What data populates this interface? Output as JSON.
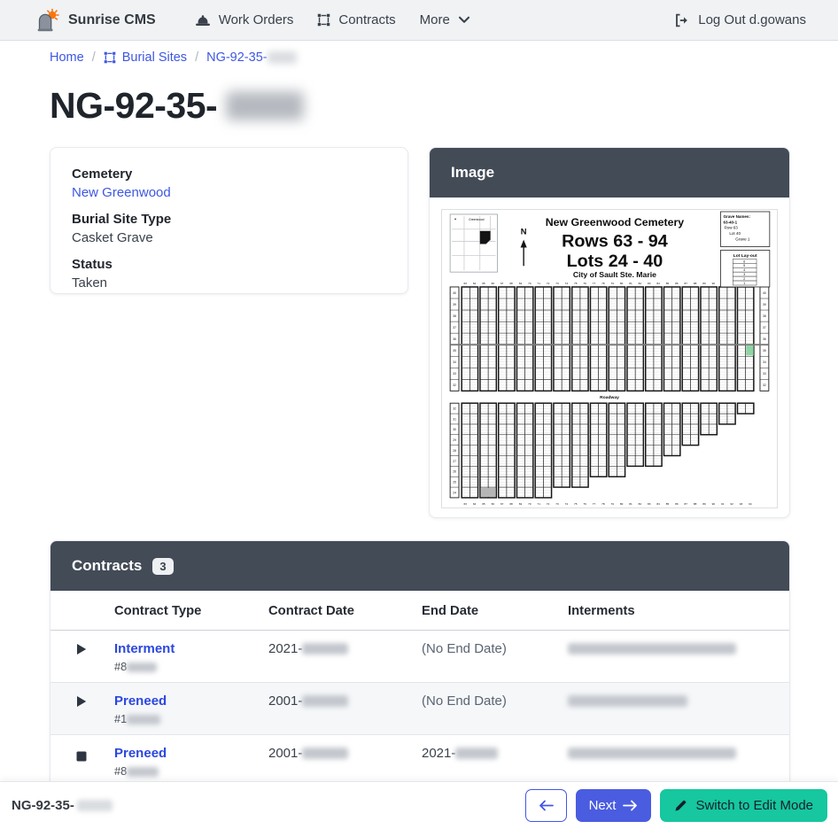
{
  "navbar": {
    "brand": "Sunrise CMS",
    "work_orders": "Work Orders",
    "contracts": "Contracts",
    "more": "More",
    "logout": "Log Out d.gowans"
  },
  "breadcrumb": {
    "home": "Home",
    "burial_sites": "Burial Sites",
    "current": "NG-92-35-",
    "separator": "/"
  },
  "page": {
    "title": "NG-92-35-"
  },
  "details": {
    "cemetery_label": "Cemetery",
    "cemetery_value": "New Greenwood",
    "type_label": "Burial Site Type",
    "type_value": "Casket Grave",
    "status_label": "Status",
    "status_value": "Taken"
  },
  "image_card": {
    "title": "Image",
    "map": {
      "inset_label": "Greenwood",
      "north_label": "N",
      "title": "New Greenwood Cemetery",
      "rows_line": "Rows 63 - 94",
      "lots_line": "Lots 24 - 40",
      "city_line": "City of Sault Ste. Marie",
      "grave_names": [
        "Grave Names:",
        "63-40-1",
        "Row 63",
        "Lot 40",
        "Grave 1"
      ],
      "lot_layout_label": "Lot Lay-out",
      "lot_layout_cells": [
        "6",
        "5",
        "4",
        "3",
        "2",
        "1"
      ],
      "roadway_label": "Roadway",
      "grid": {
        "pairs": 16,
        "upper_rows": 9,
        "row_num_start": 63,
        "upper_lot_start": 40,
        "lower_lot_start": 32,
        "lower_heights": [
          9,
          9,
          9,
          9,
          9,
          8,
          8,
          7,
          7,
          6,
          6,
          5,
          4,
          3,
          2,
          1
        ],
        "green": {
          "pair": 15,
          "row": 5
        }
      }
    }
  },
  "contracts": {
    "title": "Contracts",
    "count": "3",
    "columns": [
      "Contract Type",
      "Contract Date",
      "End Date",
      "Interments"
    ],
    "rows": [
      {
        "status": "active",
        "type": "Interment",
        "number_prefix": "#8",
        "date_prefix": "2021-",
        "end_date": "(No End Date)"
      },
      {
        "status": "active",
        "type": "Preneed",
        "number_prefix": "#1",
        "date_prefix": "2001-",
        "end_date": "(No End Date)"
      },
      {
        "status": "ended",
        "type": "Preneed",
        "number_prefix": "#8",
        "date_prefix": "2001-",
        "end_prefix": "2021-"
      }
    ]
  },
  "footer": {
    "title": "NG-92-35-",
    "next_label": "Next",
    "edit_label": "Switch to Edit Mode"
  },
  "colors": {
    "accent_blue": "#3d57e2",
    "button_blue": "#4a5ce0",
    "teal": "#16c79f",
    "header_dark": "#434b57",
    "navbar_bg": "#f0f2f4",
    "highlight_green": "#8fd4a4"
  }
}
